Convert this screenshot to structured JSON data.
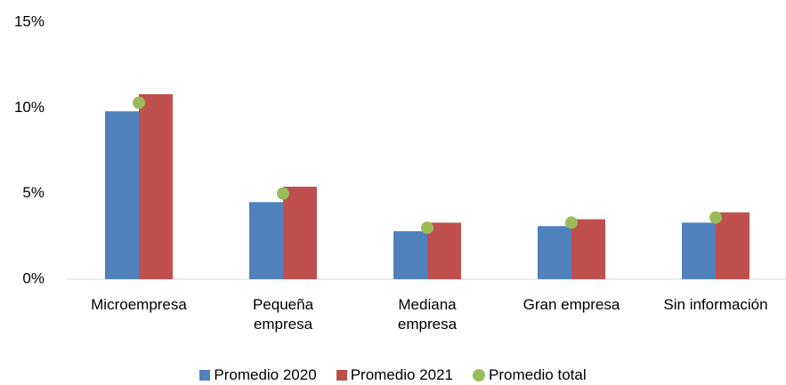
{
  "chart_data": {
    "type": "bar",
    "categories": [
      "Microempresa",
      "Pequeña empresa",
      "Mediana empresa",
      "Gran empresa",
      "Sin información"
    ],
    "series": [
      {
        "name": "Promedio 2020",
        "color": "#4f81bd",
        "values": [
          9.8,
          4.5,
          2.8,
          3.1,
          3.3
        ]
      },
      {
        "name": "Promedio 2021",
        "color": "#c0504d",
        "values": [
          10.8,
          5.4,
          3.3,
          3.5,
          3.9
        ]
      },
      {
        "name": "Promedio total",
        "color": "#9bbb59",
        "type": "scatter",
        "values": [
          10.3,
          5.0,
          3.0,
          3.3,
          3.6
        ]
      }
    ],
    "ylim": [
      0,
      15
    ],
    "yticks": [
      {
        "value": 0,
        "label": "0%"
      },
      {
        "value": 5,
        "label": "5%"
      },
      {
        "value": 10,
        "label": "10%"
      },
      {
        "value": 15,
        "label": "15%"
      }
    ],
    "grid": false,
    "legend": "bottom"
  }
}
